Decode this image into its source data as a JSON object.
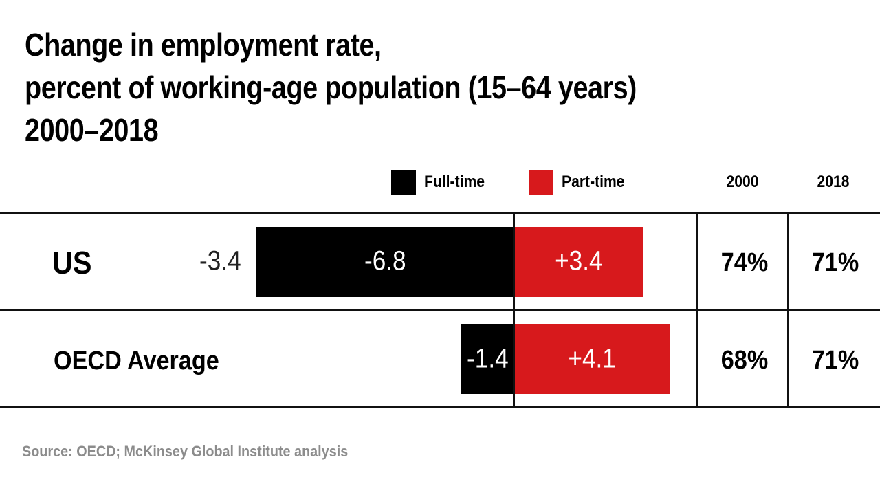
{
  "title": {
    "line1": "Change in employment rate,",
    "line2": "percent of working-age population (15–64 years)",
    "line3": "2000–2018"
  },
  "legend": {
    "full_time": "Full-time",
    "part_time": "Part-time"
  },
  "columns": {
    "year_start": "2000",
    "year_end": "2018"
  },
  "colors": {
    "full_time": "#000000",
    "part_time": "#d7191c",
    "source_text": "#8c8c8c"
  },
  "rows": [
    {
      "label": "US",
      "net": "-3.4",
      "full_time_label": "-6.8",
      "part_time_label": "+3.4",
      "rate_2000": "74%",
      "rate_2018": "71%"
    },
    {
      "label": "OECD Average",
      "full_time_label": "-1.4",
      "part_time_label": "+4.1",
      "rate_2000": "68%",
      "rate_2018": "71%"
    }
  ],
  "chart_data": {
    "type": "bar",
    "orientation": "horizontal-diverging",
    "title": "Change in employment rate, percent of working-age population (15–64 years) 2000–2018",
    "categories": [
      "US",
      "OECD Average"
    ],
    "series": [
      {
        "name": "Full-time",
        "values": [
          -6.8,
          -1.4
        ]
      },
      {
        "name": "Part-time",
        "values": [
          3.4,
          4.1
        ]
      }
    ],
    "net_change": [
      -3.4,
      null
    ],
    "xlabel": "",
    "ylabel": ""
  },
  "source": "Source: OECD; McKinsey Global Institute analysis"
}
